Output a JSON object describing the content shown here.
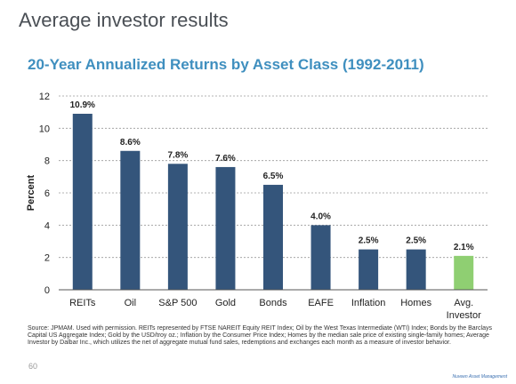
{
  "slide": {
    "title": "Average investor results",
    "page_number": "60",
    "brand": "Nuveen Asset Management",
    "source": "Source: JPMAM. Used with permission. REITs represented by FTSE NAREIT Equity REIT Index; Oil by the West Texas Intermediate (WTI) Index; Bonds by the Barclays Capital US Aggregate Index; Gold by the USD/troy oz.; Inflation by the Consumer Price Index; Homes by the median sale price of existing single-family homes; Average Investor by Dalbar Inc., which utilizes the net of aggregate mutual fund sales, redemptions and exchanges each month as a measure of investor behavior."
  },
  "chart_data": {
    "type": "bar",
    "title": "20-Year Annualized Returns by Asset Class (1992-2011)",
    "xlabel": "",
    "ylabel": "Percent",
    "ylim": [
      0,
      12
    ],
    "yticks": [
      0,
      2,
      4,
      6,
      8,
      10,
      12
    ],
    "grid": true,
    "categories": [
      "REITs",
      "Oil",
      "S&P 500",
      "Gold",
      "Bonds",
      "EAFE",
      "Inflation",
      "Homes",
      "Avg. Investor"
    ],
    "category_lines": [
      [
        "REITs"
      ],
      [
        "Oil"
      ],
      [
        "S&P 500"
      ],
      [
        "Gold"
      ],
      [
        "Bonds"
      ],
      [
        "EAFE"
      ],
      [
        "Inflation"
      ],
      [
        "Homes"
      ],
      [
        "Avg.",
        "Investor"
      ]
    ],
    "values": [
      10.9,
      8.6,
      7.8,
      7.6,
      6.5,
      4.0,
      2.5,
      2.5,
      2.1
    ],
    "data_labels": [
      "10.9%",
      "8.6%",
      "7.8%",
      "7.6%",
      "6.5%",
      "4.0%",
      "2.5%",
      "2.5%",
      "2.1%"
    ],
    "colors": [
      "#34557b",
      "#34557b",
      "#34557b",
      "#34557b",
      "#34557b",
      "#34557b",
      "#34557b",
      "#34557b",
      "#8fcf72"
    ]
  }
}
